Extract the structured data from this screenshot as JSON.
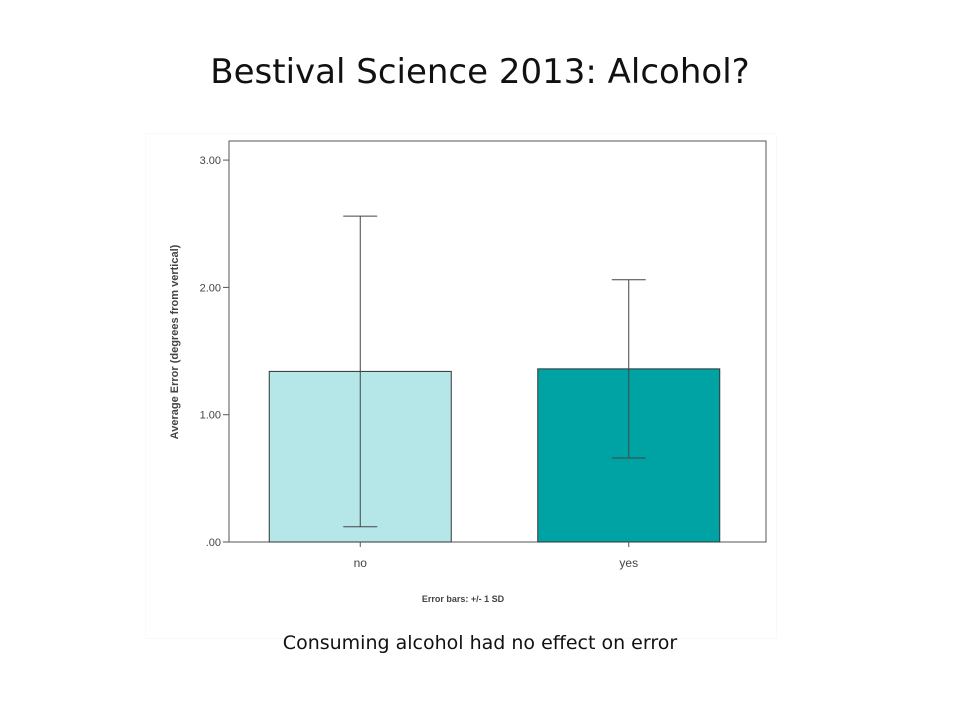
{
  "slide": {
    "title": "Bestival Science 2013: Alcohol?",
    "caption": "Consuming alcohol had no effect on error"
  },
  "chart_data": {
    "type": "bar",
    "categories": [
      "no",
      "yes"
    ],
    "values": [
      1.34,
      1.36
    ],
    "error_low": [
      0.12,
      0.66
    ],
    "error_high": [
      2.56,
      2.06
    ],
    "ylabel": "Average Error (degrees from vertical)",
    "xlabel": "",
    "ylim": [
      0,
      3.15
    ],
    "yticks": [
      ".00",
      "1.00",
      "2.00",
      "3.00"
    ],
    "ytick_values": [
      0,
      1,
      2,
      3
    ],
    "note": "Error bars: +/- 1 SD",
    "grid": false,
    "colors": [
      "#b5e6e8",
      "#00a3a3"
    ],
    "edge_color": "#333333"
  }
}
